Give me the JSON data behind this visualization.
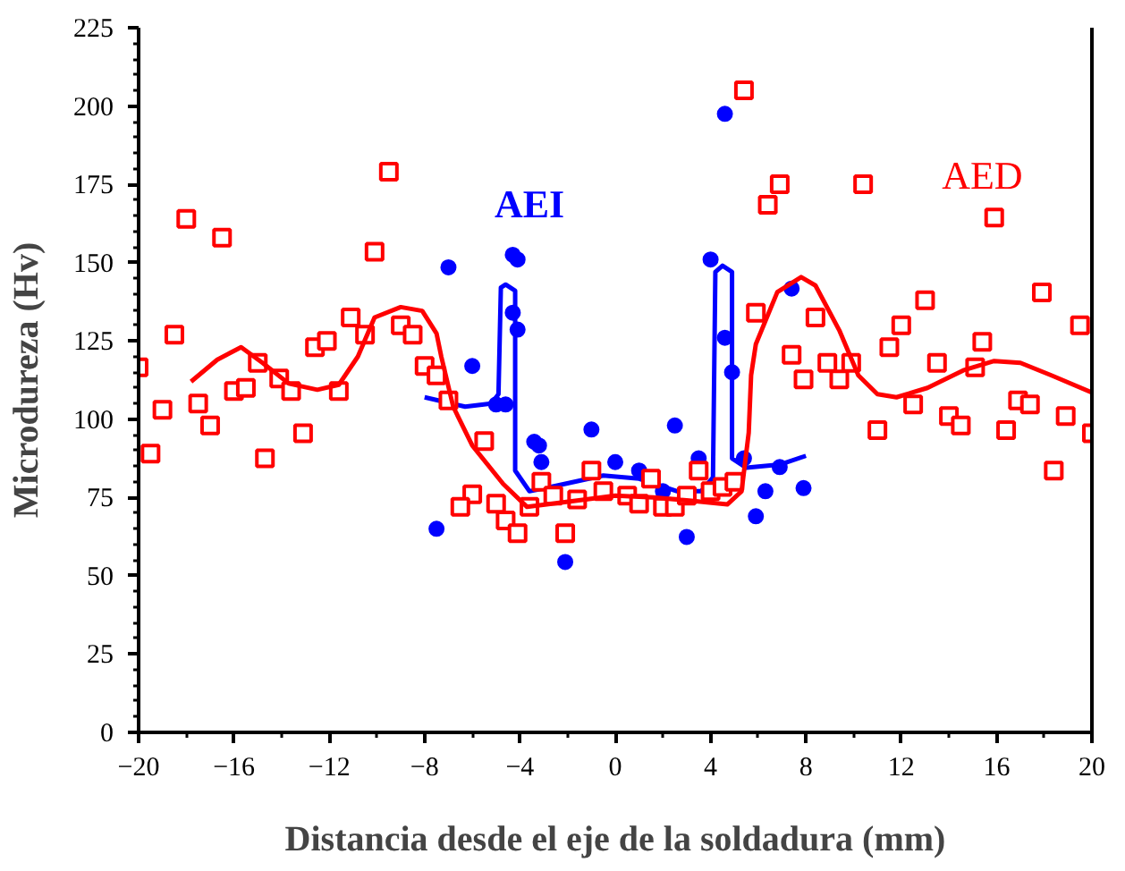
{
  "chart_data": {
    "type": "scatter",
    "xlabel": "Distancia desde el eje de la soldadura (mm)",
    "ylabel": "Microdureza (Hv)",
    "xlim": [
      -20,
      20
    ],
    "xticks": [
      -20,
      -16,
      -12,
      -8,
      -4,
      0,
      4,
      8,
      12,
      16,
      20
    ],
    "ylim": [
      0,
      225
    ],
    "yticks": [
      0,
      25,
      50,
      75,
      100,
      125,
      150,
      175,
      200,
      225
    ],
    "grid": false,
    "annotations": [
      "AEI",
      "AED"
    ],
    "series": [
      {
        "marker": "circle",
        "color": "#0000ff",
        "x": [
          -7.0,
          -7.5,
          -6.0,
          -5.0,
          -4.6,
          -4.3,
          -4.1,
          -4.3,
          -4.1,
          -3.4,
          -3.2,
          -3.1,
          -1.0,
          -2.1,
          0.0,
          1.0,
          2.0,
          2.5,
          3.0,
          3.5,
          4.0,
          4.6,
          4.6,
          4.9,
          5.4,
          6.3,
          5.9,
          6.9,
          7.4,
          7.9
        ],
        "values": [
          148.5,
          65,
          117,
          104.7,
          104.7,
          152.5,
          151,
          134,
          128.6,
          92.8,
          91.6,
          86.3,
          96.7,
          54.4,
          86.3,
          83.6,
          77,
          98,
          62.4,
          87.5,
          151,
          197.5,
          126,
          115,
          87.5,
          77,
          69,
          84.7,
          141.7,
          78
        ]
      },
      {
        "type": "line",
        "line_style": "solid",
        "marker": "none",
        "color": "#0000ff",
        "x": [
          -8.0,
          -6.3,
          -5.2,
          -4.9,
          -4.8,
          -4.6,
          -4.2,
          -4.2,
          -4.2,
          -3.6,
          -2.7,
          -0.5,
          1.0,
          2.6,
          3.6,
          4.1,
          4.2,
          4.5,
          4.9,
          4.9,
          5.5,
          6.9,
          8.0
        ],
        "values": [
          107,
          104,
          105,
          108,
          142,
          143,
          141,
          116,
          83.6,
          77,
          78.4,
          82,
          81,
          77,
          77,
          81.4,
          147,
          149,
          147,
          87.5,
          84.5,
          85.5,
          88.3
        ]
      },
      {
        "marker": "square",
        "color": "#ff0000",
        "x": [
          -20,
          -19.5,
          -19.0,
          -18.5,
          -18.0,
          -17.5,
          -17.0,
          -16.5,
          -16.0,
          -15.5,
          -15.0,
          -14.7,
          -14.1,
          -13.6,
          -13.1,
          -12.6,
          -12.1,
          -11.6,
          -11.1,
          -10.5,
          -10.1,
          -9.5,
          -9.0,
          -8.5,
          -8.0,
          -7.5,
          -7.0,
          -5.5,
          -6.0,
          -6.5,
          -5.0,
          -4.6,
          -4.1,
          -3.6,
          -3.1,
          -2.6,
          -2.1,
          -1.6,
          -1.0,
          -0.5,
          0.5,
          1.0,
          1.5,
          2.0,
          2.5,
          3.0,
          3.5,
          4.0,
          4.5,
          5.0,
          5.9,
          5.4,
          6.4,
          6.9,
          8.4,
          7.4,
          7.9,
          8.9,
          9.4,
          9.9,
          10.4,
          11.0,
          11.5,
          12.0,
          12.5,
          13.0,
          13.5,
          14.0,
          14.5,
          15.1,
          15.4,
          15.9,
          16.4,
          16.9,
          17.4,
          17.9,
          18.4,
          18.9,
          19.5,
          20.0
        ],
        "values": [
          116.6,
          89,
          103,
          127,
          164,
          105,
          98,
          158,
          109,
          110,
          118,
          87.5,
          113,
          109,
          95.5,
          123,
          125,
          109,
          132.5,
          127,
          153.5,
          179,
          130,
          127,
          117,
          114,
          106,
          93,
          76,
          72,
          73,
          67.7,
          63.6,
          72,
          80,
          75.6,
          63.6,
          74.4,
          83.6,
          77,
          75.6,
          73,
          81,
          72,
          72,
          75.6,
          83.6,
          77,
          78.4,
          80,
          134,
          205,
          168.5,
          175,
          132.5,
          120.6,
          112.7,
          118,
          112.7,
          118,
          175,
          96.5,
          123,
          130,
          104.7,
          138,
          118,
          101,
          98,
          116.6,
          124.7,
          164.4,
          96.5,
          106,
          104.7,
          140.5,
          83.6,
          101,
          130,
          95.5
        ]
      },
      {
        "type": "line",
        "line_style": "solid",
        "marker": "none",
        "color": "#ff0000",
        "x": [
          -17.8,
          -16.7,
          -15.7,
          -14.8,
          -13.7,
          -12.5,
          -11.6,
          -10.8,
          -10.1,
          -9.0,
          -8.1,
          -7.5,
          -7.3,
          -6.8,
          -6.0,
          -4.7,
          -3.7,
          -1.6,
          0,
          1.6,
          3.1,
          4.7,
          5.3,
          5.6,
          5.7,
          5.9,
          6.8,
          7.8,
          8.4,
          9.4,
          10.2,
          11.0,
          11.8,
          13.1,
          14.6,
          15.9,
          17.0,
          18.3,
          20.0
        ],
        "values": [
          112,
          119,
          123,
          118,
          111.4,
          109.4,
          111,
          120,
          132.5,
          135.8,
          134.6,
          127.4,
          120,
          104,
          91.6,
          79.3,
          72,
          74,
          75.6,
          75,
          74,
          72.8,
          77,
          95.7,
          114,
          124,
          140.6,
          145.4,
          142.7,
          128.4,
          114,
          108,
          107,
          110,
          115.6,
          118.6,
          118,
          114,
          108.5
        ]
      }
    ]
  }
}
